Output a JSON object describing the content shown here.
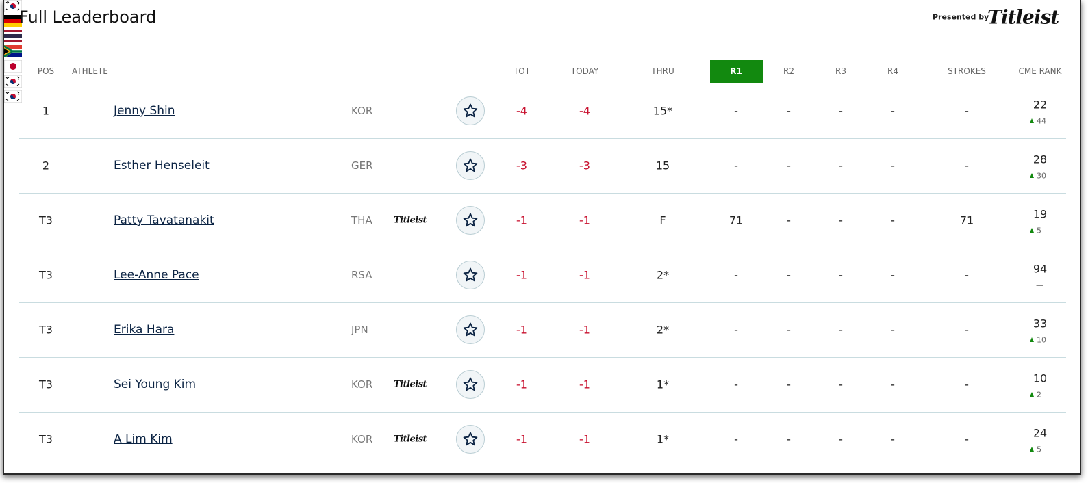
{
  "header": {
    "title": "Full Leaderboard",
    "presented_by": "Presented by",
    "sponsor_logo": "Titleist"
  },
  "columns": [
    "POS",
    "ATHLETE",
    "TOT",
    "TODAY",
    "THRU",
    "R1",
    "R2",
    "R3",
    "R4",
    "STROKES",
    "CME RANK"
  ],
  "highlighted_column": 5,
  "rows": [
    {
      "pos": "1",
      "name": "Jenny Shin",
      "country": "KOR",
      "tot": "-4",
      "today": "-4",
      "thru": "15*",
      "r1": "-",
      "r2": "-",
      "r3": "-",
      "r4": "-",
      "strokes": "-",
      "cme_rank": 22,
      "cme_change": 44,
      "cme_trend": "up"
    },
    {
      "pos": "2",
      "name": "Esther Henseleit",
      "country": "GER",
      "tot": "-3",
      "today": "-3",
      "thru": "15",
      "r1": "-",
      "r2": "-",
      "r3": "-",
      "r4": "-",
      "strokes": "-",
      "cme_rank": 28,
      "cme_change": 30,
      "cme_trend": "up"
    },
    {
      "pos": "T3",
      "name": "Patty Tavatanakit",
      "country": "THA",
      "sponsor": "Titleist",
      "tot": "-1",
      "today": "-1",
      "thru": "F",
      "r1": 71,
      "r2": "-",
      "r3": "-",
      "r4": "-",
      "strokes": 71,
      "cme_rank": 19,
      "cme_change": 5,
      "cme_trend": "up"
    },
    {
      "pos": "T3",
      "name": "Lee-Anne Pace",
      "country": "RSA",
      "tot": "-1",
      "today": "-1",
      "thru": "2*",
      "r1": "-",
      "r2": "-",
      "r3": "-",
      "r4": "-",
      "strokes": "-",
      "cme_rank": 94,
      "cme_change": "—",
      "cme_trend": "none"
    },
    {
      "pos": "T3",
      "name": "Erika Hara",
      "country": "JPN",
      "tot": "-1",
      "today": "-1",
      "thru": "2*",
      "r1": "-",
      "r2": "-",
      "r3": "-",
      "r4": "-",
      "strokes": "-",
      "cme_rank": 33,
      "cme_change": 10,
      "cme_trend": "up"
    },
    {
      "pos": "T3",
      "name": "Sei Young Kim",
      "country": "KOR",
      "sponsor": "Titleist",
      "tot": "-1",
      "today": "-1",
      "thru": "1*",
      "r1": "-",
      "r2": "-",
      "r3": "-",
      "r4": "-",
      "strokes": "-",
      "cme_rank": 10,
      "cme_change": 2,
      "cme_trend": "up"
    },
    {
      "pos": "T3",
      "name": "A Lim Kim",
      "country": "KOR",
      "sponsor": "Titleist",
      "tot": "-1",
      "today": "-1",
      "thru": "1*",
      "r1": "-",
      "r2": "-",
      "r3": "-",
      "r4": "-",
      "strokes": "-",
      "cme_rank": 24,
      "cme_change": 5,
      "cme_trend": "up"
    }
  ]
}
